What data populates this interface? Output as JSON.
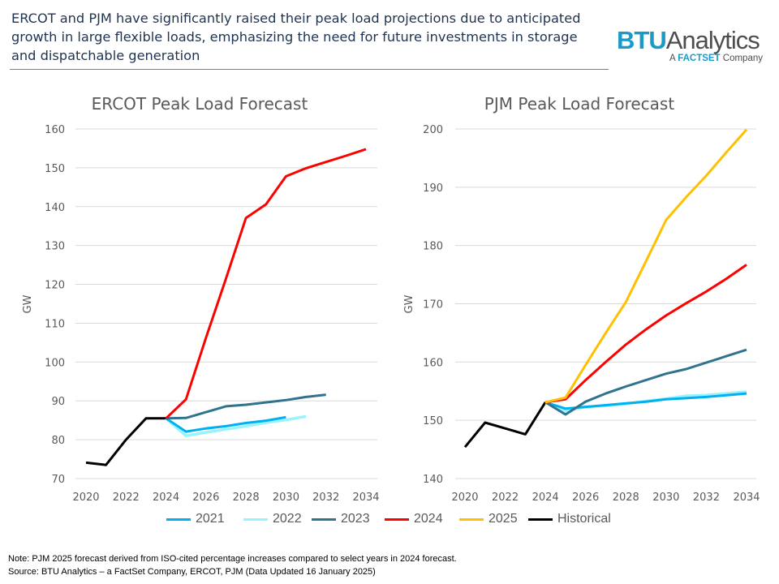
{
  "headline": "ERCOT and PJM have significantly raised their peak load projections due to anticipated growth in large flexible loads, emphasizing the need for future investments in storage and dispatchable generation",
  "logo": {
    "main_bold": "BTU",
    "main_rest": "Analytics",
    "sub_prefix": "A ",
    "sub_brand": "FACTSET",
    "sub_suffix": " Company"
  },
  "colors": {
    "2021": "#00B0F0",
    "2022": "#99F3FF",
    "2023": "#31738F",
    "2024": "#FF0000",
    "2025": "#FFC000",
    "Historical": "#000000"
  },
  "legend": [
    "2021",
    "2022",
    "2023",
    "2024",
    "2025",
    "Historical"
  ],
  "notes": {
    "note": "Note: PJM 2025 forecast derived from ISO-cited percentage increases compared to select years in 2024 forecast.",
    "source": "Source: BTU Analytics – a FactSet Company, ERCOT, PJM (Data Updated 16 January 2025)"
  },
  "chart_data": [
    {
      "type": "line",
      "title": "ERCOT Peak Load Forecast",
      "ylabel": "GW",
      "xlabel": "",
      "ylim": [
        70,
        160
      ],
      "yticks": [
        70,
        80,
        90,
        100,
        110,
        120,
        130,
        140,
        150,
        160
      ],
      "xlim": [
        2020,
        2034
      ],
      "xticks": [
        2020,
        2022,
        2024,
        2026,
        2028,
        2030,
        2032,
        2034
      ],
      "grid": "horizontal",
      "series": [
        {
          "name": "Historical",
          "x": [
            2020,
            2021,
            2022,
            2023,
            2024
          ],
          "y": [
            74.1,
            73.5,
            80.0,
            85.5,
            85.5
          ]
        },
        {
          "name": "2021",
          "x": [
            2024,
            2025,
            2026,
            2027,
            2028,
            2029,
            2030
          ],
          "y": [
            85.5,
            82.1,
            82.9,
            83.5,
            84.3,
            84.9,
            85.8
          ]
        },
        {
          "name": "2022",
          "x": [
            2024,
            2025,
            2026,
            2027,
            2028,
            2029,
            2030,
            2031
          ],
          "y": [
            85.5,
            81.0,
            81.9,
            82.7,
            83.5,
            84.4,
            85.1,
            86.0
          ]
        },
        {
          "name": "2023",
          "x": [
            2024,
            2025,
            2026,
            2027,
            2028,
            2029,
            2030,
            2031,
            2032
          ],
          "y": [
            85.5,
            85.6,
            87.1,
            88.6,
            89.0,
            89.6,
            90.2,
            91.0,
            91.6
          ]
        },
        {
          "name": "2024",
          "x": [
            2024,
            2025,
            2026,
            2027,
            2028,
            2029,
            2030,
            2031,
            2032,
            2033,
            2034
          ],
          "y": [
            85.5,
            90.4,
            106.3,
            121.5,
            137.1,
            140.6,
            147.8,
            149.9,
            151.5,
            153.1,
            154.8
          ]
        }
      ]
    },
    {
      "type": "line",
      "title": "PJM Peak Load Forecast",
      "ylabel": "GW",
      "xlabel": "",
      "ylim": [
        140,
        200
      ],
      "yticks": [
        140,
        150,
        160,
        170,
        180,
        190,
        200
      ],
      "xlim": [
        2020,
        2034
      ],
      "xticks": [
        2020,
        2022,
        2024,
        2026,
        2028,
        2030,
        2032,
        2034
      ],
      "grid": "horizontal",
      "series": [
        {
          "name": "Historical",
          "x": [
            2020,
            2021,
            2022,
            2023,
            2024
          ],
          "y": [
            145.4,
            149.6,
            148.6,
            147.6,
            153.1
          ]
        },
        {
          "name": "2021",
          "x": [
            2024,
            2025,
            2026,
            2027,
            2028,
            2029,
            2030,
            2031,
            2032,
            2033,
            2034
          ],
          "y": [
            153.1,
            152.0,
            152.3,
            152.6,
            152.9,
            153.2,
            153.6,
            153.8,
            154.0,
            154.3,
            154.6
          ]
        },
        {
          "name": "2022",
          "x": [
            2024,
            2025,
            2026,
            2027,
            2028,
            2029,
            2030,
            2031,
            2032,
            2033,
            2034
          ],
          "y": [
            153.1,
            151.6,
            152.3,
            152.5,
            152.8,
            153.3,
            153.7,
            154.2,
            154.3,
            154.6,
            154.9
          ]
        },
        {
          "name": "2023",
          "x": [
            2024,
            2025,
            2026,
            2027,
            2028,
            2029,
            2030,
            2031,
            2032,
            2033,
            2034
          ],
          "y": [
            153.1,
            151.0,
            153.2,
            154.6,
            155.8,
            156.9,
            158.0,
            158.8,
            159.9,
            161.0,
            162.1
          ]
        },
        {
          "name": "2024",
          "x": [
            2024,
            2025,
            2026,
            2027,
            2028,
            2029,
            2030,
            2031,
            2032,
            2033,
            2034
          ],
          "y": [
            153.1,
            153.6,
            156.9,
            160.0,
            163.0,
            165.6,
            168.0,
            170.1,
            172.1,
            174.3,
            176.7
          ]
        },
        {
          "name": "2025",
          "x": [
            2024,
            2025,
            2026,
            2027,
            2028,
            2029,
            2030,
            2031,
            2032,
            2033,
            2034
          ],
          "y": [
            153.1,
            153.9,
            159.5,
            165.0,
            170.3,
            177.3,
            184.4,
            188.3,
            192.0,
            196.0,
            199.9
          ]
        }
      ]
    }
  ]
}
